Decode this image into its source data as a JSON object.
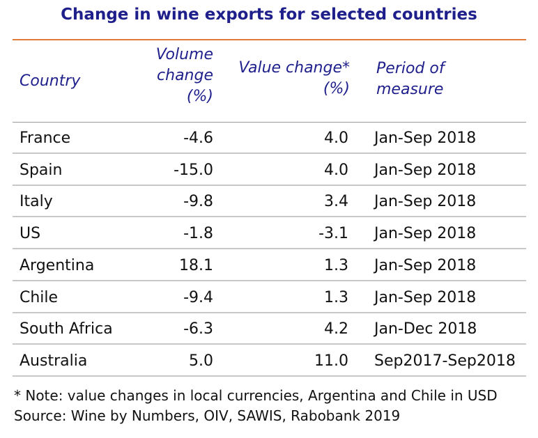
{
  "title": "Change in wine exports for selected countries",
  "headers": {
    "country": "Country",
    "volume": "Volume change (%)",
    "value": "Value change* (%)",
    "period": "Period of measure"
  },
  "chart_data": {
    "type": "table",
    "title": "Change in wine exports for selected countries",
    "columns": [
      "Country",
      "Volume change (%)",
      "Value change* (%)",
      "Period of measure"
    ],
    "rows": [
      {
        "country": "France",
        "volume": "-4.6",
        "value": "4.0",
        "period": "Jan-Sep 2018"
      },
      {
        "country": "Spain",
        "volume": "-15.0",
        "value": "4.0",
        "period": "Jan-Sep 2018"
      },
      {
        "country": "Italy",
        "volume": "-9.8",
        "value": "3.4",
        "period": "Jan-Sep 2018"
      },
      {
        "country": "US",
        "volume": "-1.8",
        "value": "-3.1",
        "period": "Jan-Sep 2018"
      },
      {
        "country": "Argentina",
        "volume": "18.1",
        "value": "1.3",
        "period": "Jan-Sep 2018"
      },
      {
        "country": "Chile",
        "volume": "-9.4",
        "value": "1.3",
        "period": "Jan-Sep 2018"
      },
      {
        "country": "South Africa",
        "volume": "-6.3",
        "value": "4.2",
        "period": "Jan-Dec 2018"
      },
      {
        "country": "Australia",
        "volume": "5.0",
        "value": "11.0",
        "period": "Sep2017-Sep2018"
      }
    ]
  },
  "notes": {
    "note": "* Note: value changes in local currencies, Argentina and Chile in USD",
    "source": "Source: Wine by Numbers, OIV, SAWIS, Rabobank 2019"
  },
  "colors": {
    "title": "#1f1f8c",
    "header": "#1f1f8c",
    "accent_rule": "#e07b39",
    "row_rule": "#c8c8c8"
  }
}
